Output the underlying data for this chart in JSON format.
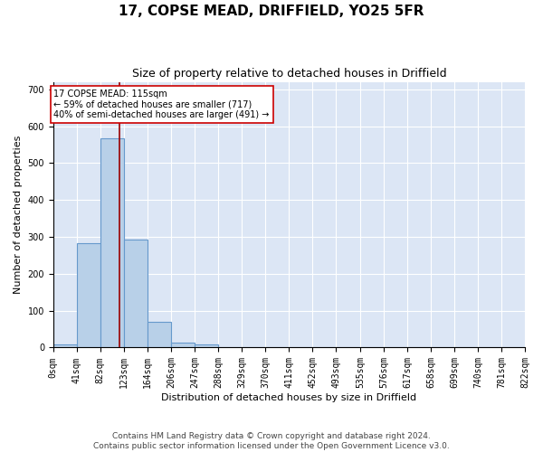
{
  "title": "17, COPSE MEAD, DRIFFIELD, YO25 5FR",
  "subtitle": "Size of property relative to detached houses in Driffield",
  "xlabel": "Distribution of detached houses by size in Driffield",
  "ylabel": "Number of detached properties",
  "bin_edges": [
    0,
    41,
    82,
    123,
    164,
    206,
    247,
    288,
    329,
    370,
    411,
    452,
    493,
    535,
    576,
    617,
    658,
    699,
    740,
    781,
    822
  ],
  "bar_heights": [
    8,
    283,
    567,
    293,
    70,
    13,
    8,
    0,
    0,
    0,
    0,
    0,
    0,
    0,
    0,
    0,
    0,
    0,
    0,
    0
  ],
  "bar_color": "#b8d0e8",
  "bar_edgecolor": "#6699cc",
  "bar_linewidth": 0.8,
  "vline_x": 115,
  "vline_color": "#990000",
  "vline_linewidth": 1.2,
  "annotation_text": "17 COPSE MEAD: 115sqm\n← 59% of detached houses are smaller (717)\n40% of semi-detached houses are larger (491) →",
  "annotation_boxcolor": "white",
  "annotation_edgecolor": "#cc0000",
  "ylim": [
    0,
    720
  ],
  "yticks": [
    0,
    100,
    200,
    300,
    400,
    500,
    600,
    700
  ],
  "xlim_min": 0,
  "xlim_max": 822,
  "background_color": "#dce6f5",
  "grid_color": "white",
  "footer_text": "Contains HM Land Registry data © Crown copyright and database right 2024.\nContains public sector information licensed under the Open Government Licence v3.0.",
  "title_fontsize": 11,
  "subtitle_fontsize": 9,
  "xlabel_fontsize": 8,
  "ylabel_fontsize": 8,
  "tick_fontsize": 7,
  "footer_fontsize": 6.5
}
